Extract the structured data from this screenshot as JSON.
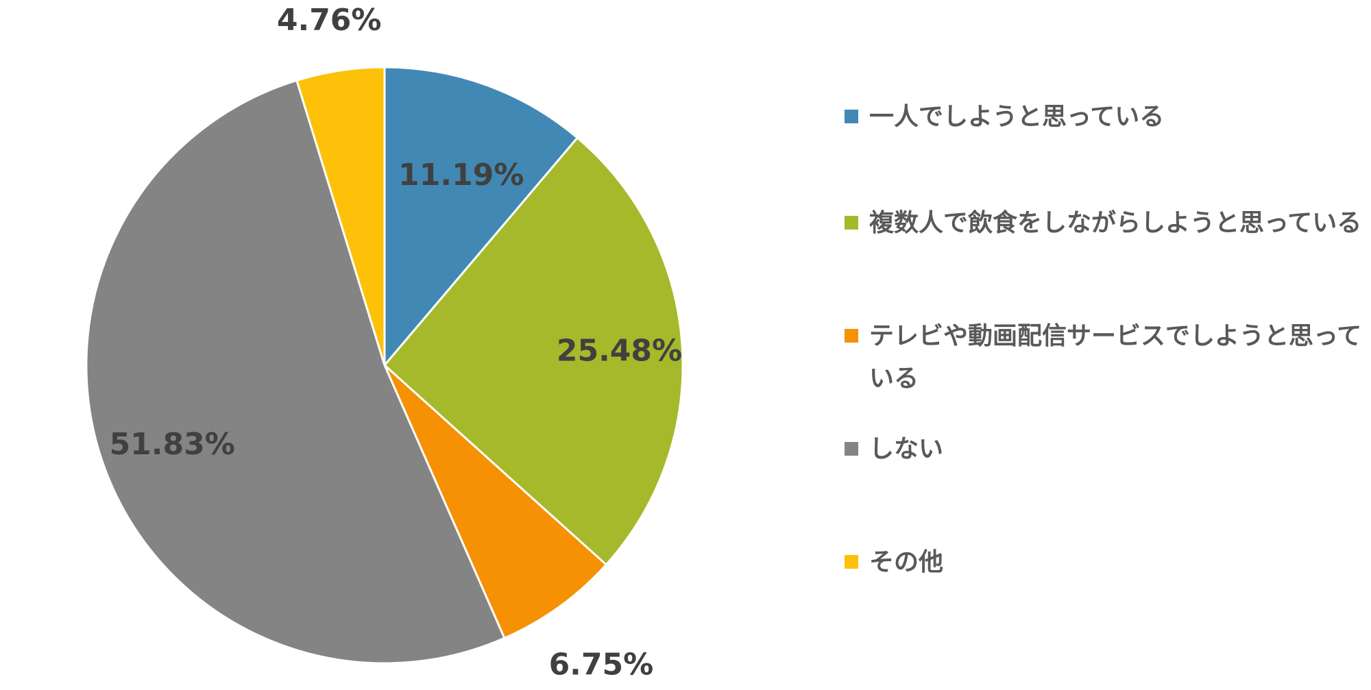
{
  "chart_data": {
    "type": "pie",
    "title": "",
    "start_angle_deg": 0,
    "direction": "clockwise",
    "slices": [
      {
        "label": "一人でしようと思っている",
        "value": 11.19,
        "display": "11.19%",
        "color": "#4189b4"
      },
      {
        "label": "複数人で飲食をしながらしようと思っている",
        "value": 25.48,
        "display": "25.48%",
        "color": "#a5b92b"
      },
      {
        "label": "テレビや動画配信サービスでしようと思っている",
        "value": 6.75,
        "display": "6.75%",
        "color": "#f59103"
      },
      {
        "label": "しない",
        "value": 51.83,
        "display": "51.83%",
        "color": "#848484"
      },
      {
        "label": "その他",
        "value": 4.76,
        "display": "4.76%",
        "color": "#fdc10a"
      }
    ],
    "legend": {
      "placement": "right"
    }
  }
}
